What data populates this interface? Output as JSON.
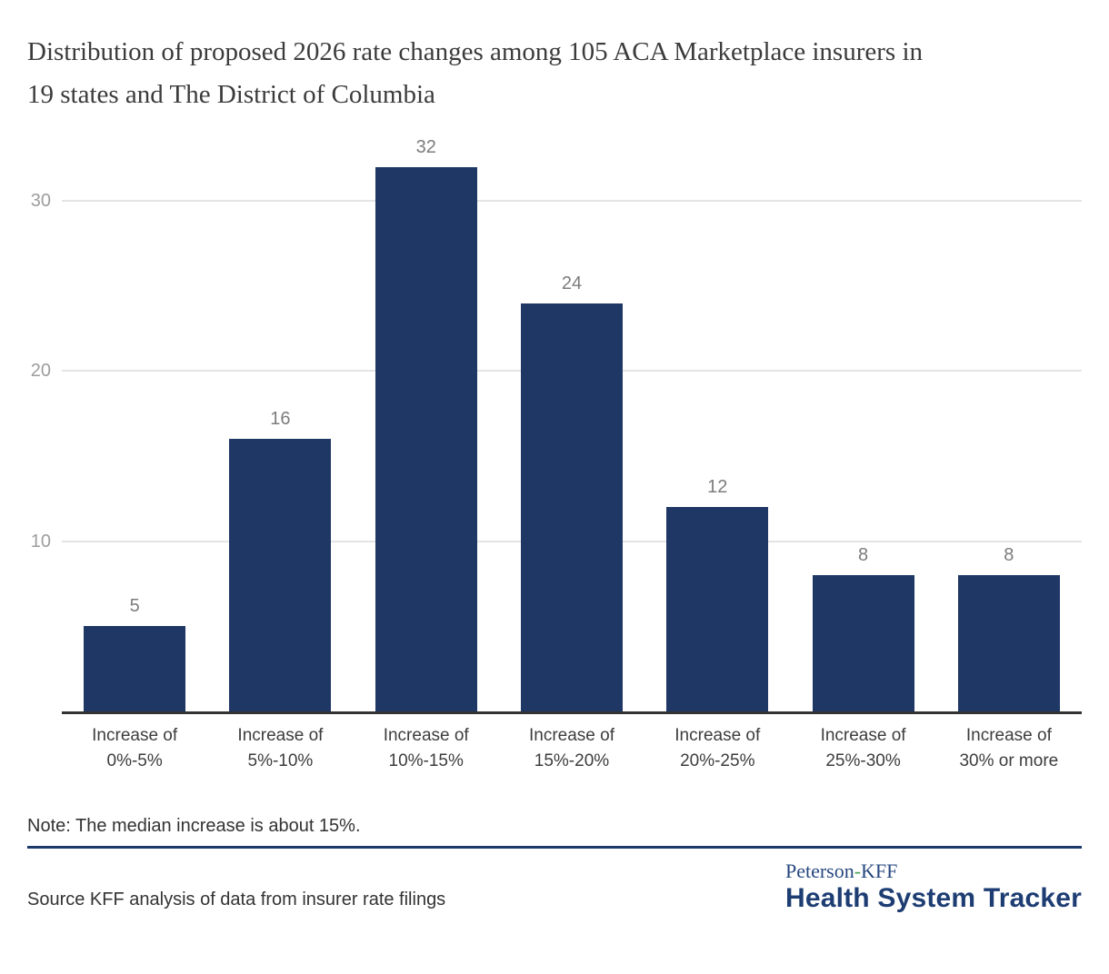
{
  "chart_data": {
    "type": "bar",
    "title": "Distribution of proposed 2026 rate changes among 105 ACA Marketplace insurers in 19 states and The District of Columbia",
    "categories": [
      "Increase of 0%-5%",
      "Increase of 5%-10%",
      "Increase of 10%-15%",
      "Increase of 15%-20%",
      "Increase of 20%-25%",
      "Increase of 25%-30%",
      "Increase of 30% or more"
    ],
    "values": [
      5,
      16,
      32,
      24,
      12,
      8,
      8
    ],
    "xlabel": "",
    "ylabel": "",
    "yticks": [
      10,
      20,
      30
    ],
    "ylim": [
      0,
      33
    ],
    "grid": true,
    "legend": "none",
    "value_labels_shown": true
  },
  "footer": {
    "note": "Note: The median increase is about 15%.",
    "source": "Source KFF analysis of data from insurer rate filings",
    "logo": {
      "part1": "Peterson",
      "hyphen": "-",
      "part2": "KFF",
      "bottom": "Health System Tracker"
    }
  },
  "colors": {
    "background": "#ffffff",
    "bar": "#1f3765",
    "gridline": "#e4e4e4",
    "axis": "#333333",
    "tick_label": "#9d9d9d",
    "value_label": "#7c7c7c",
    "title_text": "#3b3b3b",
    "label_text": "#3d3d3d",
    "note_text": "#333333",
    "divider": "#1b3a6b",
    "logo_serif": "#27477f",
    "logo_green": "#4aa157",
    "logo_bold": "#1d3d73"
  }
}
